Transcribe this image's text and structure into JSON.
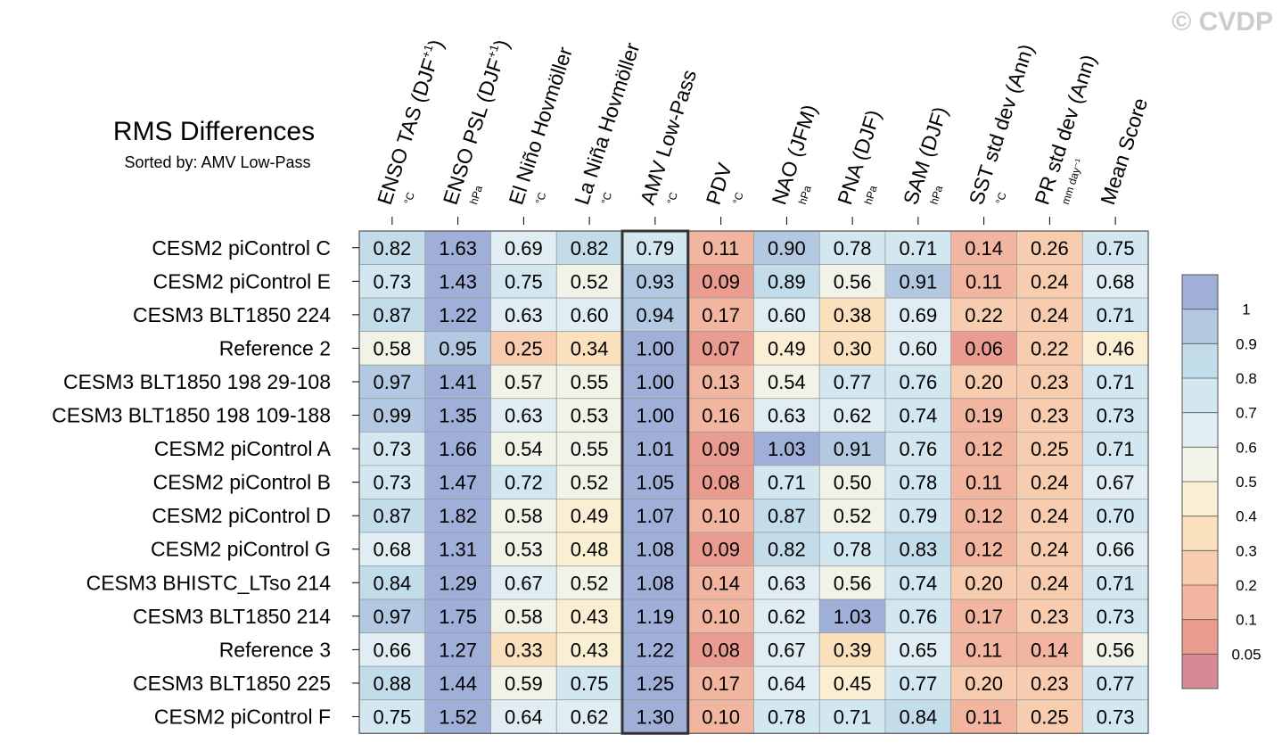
{
  "watermark": "© CVDP",
  "chart_data": {
    "type": "heatmap",
    "title": "RMS Differences",
    "subtitle": "Sorted by: AMV Low-Pass",
    "columns": [
      {
        "name": "ENSO TAS (DJF",
        "sup": "+1",
        "close": ")",
        "unit": "°C"
      },
      {
        "name": "ENSO PSL (DJF",
        "sup": "+1",
        "close": ")",
        "unit": "hPa"
      },
      {
        "name": "El Niño Hovmöller",
        "sup": "",
        "close": "",
        "unit": "°C"
      },
      {
        "name": "La Niña Hovmöller",
        "sup": "",
        "close": "",
        "unit": "°C"
      },
      {
        "name": "AMV Low-Pass",
        "sup": "",
        "close": "",
        "unit": "°C"
      },
      {
        "name": "PDV",
        "sup": "",
        "close": "",
        "unit": "°C"
      },
      {
        "name": "NAO (JFM)",
        "sup": "",
        "close": "",
        "unit": "hPa"
      },
      {
        "name": "PNA (DJF)",
        "sup": "",
        "close": "",
        "unit": "hPa"
      },
      {
        "name": "SAM (DJF)",
        "sup": "",
        "close": "",
        "unit": "hPa"
      },
      {
        "name": "SST std dev (Ann)",
        "sup": "",
        "close": "",
        "unit": "°C"
      },
      {
        "name": "PR std dev (Ann)",
        "sup": "",
        "close": "",
        "unit": "mm day⁻¹"
      },
      {
        "name": "Mean Score",
        "sup": "",
        "close": "",
        "unit": ""
      }
    ],
    "sorted_column": 4,
    "rows": [
      "CESM2 piControl C",
      "CESM2 piControl E",
      "CESM3 BLT1850 224",
      "Reference 2",
      "CESM3 BLT1850 198 29-108",
      "CESM3 BLT1850 198 109-188",
      "CESM2 piControl A",
      "CESM2 piControl B",
      "CESM2 piControl D",
      "CESM2 piControl G",
      "CESM3 BHISTC_LTso 214",
      "CESM3 BLT1850 214",
      "Reference 3",
      "CESM3 BLT1850 225",
      "CESM2 piControl F"
    ],
    "values": [
      [
        "0.82",
        "1.63",
        "0.69",
        "0.82",
        "0.79",
        "0.11",
        "0.90",
        "0.78",
        "0.71",
        "0.14",
        "0.26",
        "0.75"
      ],
      [
        "0.73",
        "1.43",
        "0.75",
        "0.52",
        "0.93",
        "0.09",
        "0.89",
        "0.56",
        "0.91",
        "0.11",
        "0.24",
        "0.68"
      ],
      [
        "0.87",
        "1.22",
        "0.63",
        "0.60",
        "0.94",
        "0.17",
        "0.60",
        "0.38",
        "0.69",
        "0.22",
        "0.24",
        "0.71"
      ],
      [
        "0.58",
        "0.95",
        "0.25",
        "0.34",
        "1.00",
        "0.07",
        "0.49",
        "0.30",
        "0.60",
        "0.06",
        "0.22",
        "0.46"
      ],
      [
        "0.97",
        "1.41",
        "0.57",
        "0.55",
        "1.00",
        "0.13",
        "0.54",
        "0.77",
        "0.76",
        "0.20",
        "0.23",
        "0.71"
      ],
      [
        "0.99",
        "1.35",
        "0.63",
        "0.53",
        "1.00",
        "0.16",
        "0.63",
        "0.62",
        "0.74",
        "0.19",
        "0.23",
        "0.73"
      ],
      [
        "0.73",
        "1.66",
        "0.54",
        "0.55",
        "1.01",
        "0.09",
        "1.03",
        "0.91",
        "0.76",
        "0.12",
        "0.25",
        "0.71"
      ],
      [
        "0.73",
        "1.47",
        "0.72",
        "0.52",
        "1.05",
        "0.08",
        "0.71",
        "0.50",
        "0.78",
        "0.11",
        "0.24",
        "0.67"
      ],
      [
        "0.87",
        "1.82",
        "0.58",
        "0.49",
        "1.07",
        "0.10",
        "0.87",
        "0.52",
        "0.79",
        "0.12",
        "0.24",
        "0.70"
      ],
      [
        "0.68",
        "1.31",
        "0.53",
        "0.48",
        "1.08",
        "0.09",
        "0.82",
        "0.78",
        "0.83",
        "0.12",
        "0.24",
        "0.66"
      ],
      [
        "0.84",
        "1.29",
        "0.67",
        "0.52",
        "1.08",
        "0.14",
        "0.63",
        "0.56",
        "0.74",
        "0.20",
        "0.24",
        "0.71"
      ],
      [
        "0.97",
        "1.75",
        "0.58",
        "0.43",
        "1.19",
        "0.10",
        "0.62",
        "1.03",
        "0.76",
        "0.17",
        "0.23",
        "0.73"
      ],
      [
        "0.66",
        "1.27",
        "0.33",
        "0.43",
        "1.22",
        "0.08",
        "0.67",
        "0.39",
        "0.65",
        "0.11",
        "0.14",
        "0.56"
      ],
      [
        "0.88",
        "1.44",
        "0.59",
        "0.75",
        "1.25",
        "0.17",
        "0.64",
        "0.45",
        "0.77",
        "0.20",
        "0.23",
        "0.77"
      ],
      [
        "0.75",
        "1.52",
        "0.64",
        "0.62",
        "1.30",
        "0.10",
        "0.78",
        "0.71",
        "0.84",
        "0.11",
        "0.25",
        "0.73"
      ]
    ],
    "colorbar": {
      "levels": [
        "1",
        "0.9",
        "0.8",
        "0.7",
        "0.6",
        "0.5",
        "0.4",
        "0.3",
        "0.2",
        "0.1",
        "0.05"
      ],
      "colors": [
        "#9fafd8",
        "#b2c9e1",
        "#c2dcea",
        "#d2e7f0",
        "#e0eef3",
        "#f1f2e8",
        "#fbefd3",
        "#fbe0be",
        "#f8ccaf",
        "#f2b5a0",
        "#ea9c90",
        "#d68a93"
      ]
    }
  }
}
